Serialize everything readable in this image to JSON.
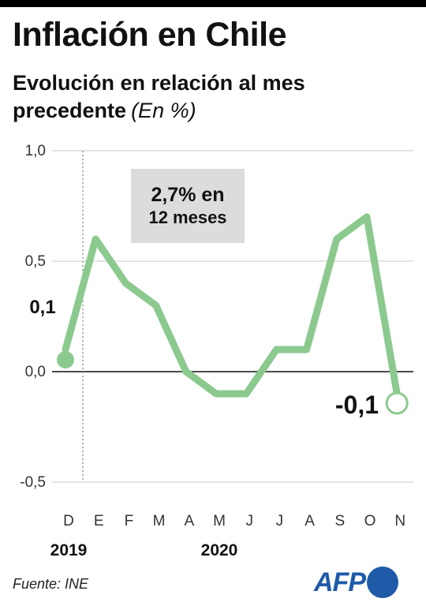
{
  "title": "Inflación en Chile",
  "subtitle": "Evolución en relación al mes precedente",
  "unit": "(En %)",
  "source": "Fuente: INE",
  "logo_text": "AFP",
  "chart_data": {
    "type": "line",
    "x": [
      "D",
      "E",
      "F",
      "M",
      "A",
      "M",
      "J",
      "J",
      "A",
      "S",
      "O",
      "N"
    ],
    "years": [
      {
        "label": "2019",
        "index": 0
      },
      {
        "label": "2020",
        "index": 5
      }
    ],
    "values": [
      0.1,
      0.6,
      0.4,
      0.3,
      0.0,
      -0.1,
      -0.1,
      0.1,
      0.1,
      0.6,
      0.7,
      -0.1
    ],
    "ylim": [
      -0.5,
      1.0
    ],
    "yticks": [
      1.0,
      0.5,
      0.0,
      -0.5
    ],
    "ytick_labels": [
      "1,0",
      "0,5",
      "0,0",
      "-0,5"
    ],
    "start_label": "0,1",
    "end_label": "-0,1",
    "annotation": {
      "line1": "2,7% en",
      "line2": "12 meses"
    },
    "line_color": "#8cc98f",
    "grid": true
  }
}
